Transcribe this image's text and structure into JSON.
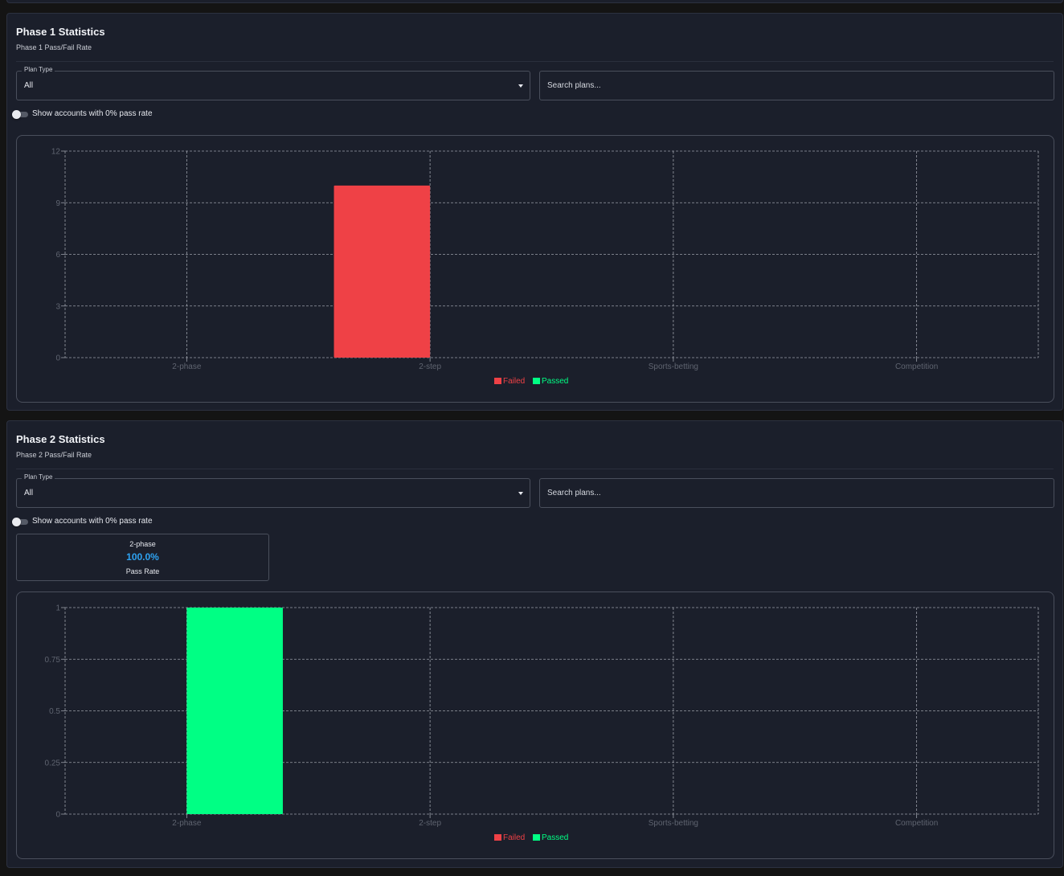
{
  "colors": {
    "failed": "#ef4146",
    "passed": "#00ff84",
    "pass_rate_accent": "#2ea3f2",
    "axis_text": "#5f6470",
    "grid": "#9a9ea8"
  },
  "phase1": {
    "title": "Phase 1 Statistics",
    "subtitle": "Phase 1 Pass/Fail Rate",
    "plan_type_label": "Plan Type",
    "plan_type_value": "All",
    "search_placeholder": "Search plans...",
    "toggle_label": "Show accounts with 0% pass rate",
    "toggle_on": false
  },
  "phase2": {
    "title": "Phase 2 Statistics",
    "subtitle": "Phase 2 Pass/Fail Rate",
    "plan_type_label": "Plan Type",
    "plan_type_value": "All",
    "search_placeholder": "Search plans...",
    "toggle_label": "Show accounts with 0% pass rate",
    "toggle_on": false,
    "stat_card": {
      "name": "2-phase",
      "value": "100.0%",
      "label": "Pass Rate"
    }
  },
  "chart_data": [
    {
      "type": "bar",
      "title": "",
      "categories": [
        "2-phase",
        "2-step",
        "Sports-betting",
        "Competition"
      ],
      "series": [
        {
          "name": "Failed",
          "values": [
            0,
            10,
            0,
            0
          ]
        },
        {
          "name": "Passed",
          "values": [
            0,
            0,
            0,
            0
          ]
        }
      ],
      "yticks": [
        "0",
        "3",
        "6",
        "9",
        "12"
      ],
      "ylim": [
        0,
        12
      ],
      "grid": true,
      "legend": "bottom-center"
    },
    {
      "type": "bar",
      "title": "",
      "categories": [
        "2-phase",
        "2-step",
        "Sports-betting",
        "Competition"
      ],
      "series": [
        {
          "name": "Failed",
          "values": [
            0,
            0,
            0,
            0
          ]
        },
        {
          "name": "Passed",
          "values": [
            1,
            0,
            0,
            0
          ]
        }
      ],
      "yticks": [
        "0",
        "0.25",
        "0.5",
        "0.75",
        "1"
      ],
      "ylim": [
        0,
        1
      ],
      "grid": true,
      "legend": "bottom-center"
    }
  ]
}
